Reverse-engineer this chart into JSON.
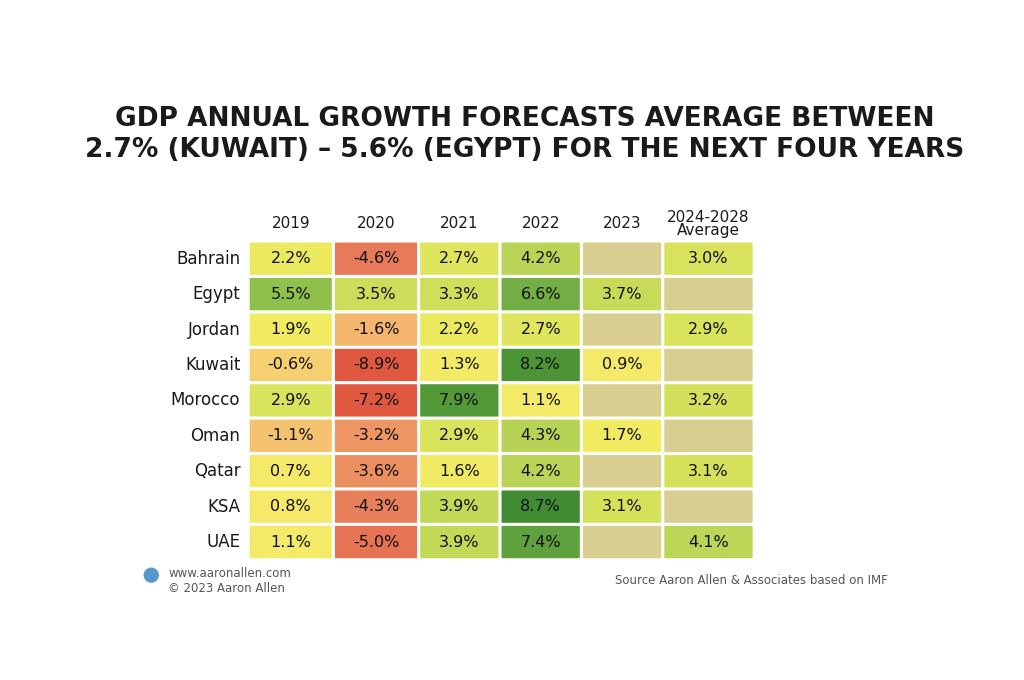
{
  "title_line1": "GDP ANNUAL GROWTH FORECASTS AVERAGE BETWEEN",
  "title_line2": "2.7% (KUWAIT) – 5.6% (EGYPT) FOR THE NEXT FOUR YEARS",
  "countries": [
    "Bahrain",
    "Egypt",
    "Jordan",
    "Kuwait",
    "Morocco",
    "Oman",
    "Qatar",
    "KSA",
    "UAE"
  ],
  "columns": [
    "2019",
    "2020",
    "2021",
    "2022",
    "2023",
    "2024-2028\nAverage"
  ],
  "values": [
    [
      2.2,
      -4.6,
      2.7,
      4.2,
      null,
      3.0
    ],
    [
      5.5,
      3.5,
      3.3,
      6.6,
      3.7,
      null
    ],
    [
      1.9,
      -1.6,
      2.2,
      2.7,
      null,
      2.9
    ],
    [
      -0.6,
      -8.9,
      1.3,
      8.2,
      0.9,
      null
    ],
    [
      2.9,
      -7.2,
      7.9,
      1.1,
      null,
      3.2
    ],
    [
      -1.1,
      -3.2,
      2.9,
      4.3,
      1.7,
      null
    ],
    [
      0.7,
      -3.6,
      1.6,
      4.2,
      null,
      3.1
    ],
    [
      0.8,
      -4.3,
      3.9,
      8.7,
      3.1,
      null
    ],
    [
      1.1,
      -5.0,
      3.9,
      7.4,
      null,
      4.1
    ]
  ],
  "labels": [
    [
      "2.2%",
      "-4.6%",
      "2.7%",
      "4.2%",
      "",
      "3.0%"
    ],
    [
      "5.5%",
      "3.5%",
      "3.3%",
      "6.6%",
      "3.7%",
      ""
    ],
    [
      "1.9%",
      "-1.6%",
      "2.2%",
      "2.7%",
      "",
      "2.9%"
    ],
    [
      "-0.6%",
      "-8.9%",
      "1.3%",
      "8.2%",
      "0.9%",
      ""
    ],
    [
      "2.9%",
      "-7.2%",
      "7.9%",
      "1.1%",
      "",
      "3.2%"
    ],
    [
      "-1.1%",
      "-3.2%",
      "2.9%",
      "4.3%",
      "1.7%",
      ""
    ],
    [
      "0.7%",
      "-3.6%",
      "1.6%",
      "4.2%",
      "",
      "3.1%"
    ],
    [
      "0.8%",
      "-4.3%",
      "3.9%",
      "8.7%",
      "3.1%",
      ""
    ],
    [
      "1.1%",
      "-5.0%",
      "3.9%",
      "7.4%",
      "",
      "4.1%"
    ]
  ],
  "background_color": "#ffffff",
  "footer_left": "www.aaronallen.com\n© 2023 Aaron Allen",
  "footer_right": "Source Aaron Allen & Associates based on IMF",
  "color_stops": {
    "very_neg": "#e05840",
    "neg_mid": "#e87c5a",
    "neg_light": "#f0a878",
    "zero_ish": "#f5d878",
    "yellow": "#f0e878",
    "yel_grn1": "#d8e070",
    "yel_grn2": "#b8d468",
    "lt_green": "#8ec060",
    "med_green": "#6aac4a",
    "drk_green": "#3a8c30",
    "null_color": "#d8ce90"
  }
}
